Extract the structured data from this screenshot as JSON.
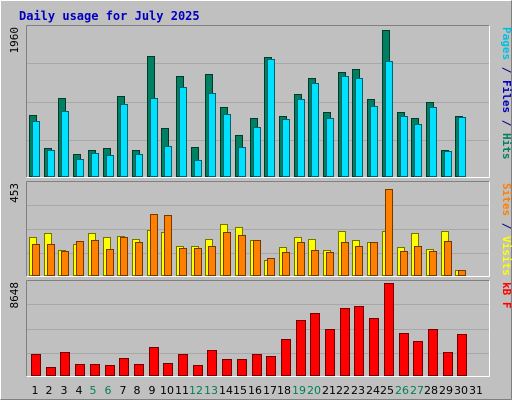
{
  "chart_data": {
    "type": "bar",
    "title": "Daily usage for July 2025",
    "days": [
      "1",
      "2",
      "3",
      "4",
      "5",
      "6",
      "7",
      "8",
      "9",
      "10",
      "11",
      "12",
      "13",
      "14",
      "15",
      "16",
      "17",
      "18",
      "19",
      "20",
      "21",
      "22",
      "23",
      "24",
      "25",
      "26",
      "27",
      "28",
      "29",
      "30",
      "31"
    ],
    "weekend_days": [
      5,
      6,
      12,
      13,
      19,
      20,
      26,
      27
    ],
    "panels": [
      {
        "name": "hits-files-pages",
        "max_label": "1960",
        "ymax": 1960,
        "right_label": [
          {
            "text": "Pages",
            "color": "#00c0e0"
          },
          {
            "text": " / ",
            "color": "#000080"
          },
          {
            "text": "Files",
            "color": "#0000c0"
          },
          {
            "text": " / ",
            "color": "#000080"
          },
          {
            "text": "Hits",
            "color": "#008060"
          }
        ],
        "series": [
          {
            "name": "Hits",
            "color": "#008060",
            "values": [
              810,
              380,
              1040,
              300,
              350,
              380,
              1060,
              360,
              1590,
              640,
              1330,
              400,
              1350,
              920,
              550,
              770,
              1580,
              800,
              1090,
              1300,
              850,
              1380,
              1420,
              1020,
              1930,
              860,
              770,
              980,
              360,
              800,
              0
            ]
          },
          {
            "name": "Pages",
            "color": "#00e0ff",
            "values": [
              740,
              350,
              870,
              240,
              310,
              290,
              960,
              300,
              1040,
              410,
              1190,
              230,
              1100,
              830,
              400,
              660,
              1550,
              760,
              1020,
              1230,
              770,
              1330,
              1300,
              930,
              1520,
              800,
              700,
              920,
              340,
              790,
              0
            ]
          }
        ]
      },
      {
        "name": "sites-visits",
        "max_label": "453",
        "ymax": 453,
        "right_label": [
          {
            "text": "Sites",
            "color": "#ff8000"
          },
          {
            "text": " / ",
            "color": "#000080"
          },
          {
            "text": "Visits",
            "color": "#ffff00"
          }
        ],
        "series": [
          {
            "name": "Visits",
            "color": "#ffff00",
            "values": [
              190,
              210,
              130,
              160,
              210,
              190,
              195,
              180,
              225,
              215,
              150,
              150,
              180,
              255,
              240,
              175,
              80,
              145,
              190,
              180,
              130,
              220,
              175,
              165,
              220,
              145,
              210,
              135,
              220,
              30,
              0
            ]
          },
          {
            "name": "Sites",
            "color": "#ff8000",
            "values": [
              160,
              160,
              125,
              170,
              175,
              135,
              190,
              165,
              305,
              300,
              140,
              140,
              150,
              215,
              200,
              175,
              90,
              120,
              165,
              130,
              120,
              165,
              150,
              165,
              430,
              125,
              150,
              125,
              170,
              30,
              0
            ]
          }
        ]
      },
      {
        "name": "kbytes",
        "max_label": "8648",
        "ymax": 8648,
        "right_label": [
          {
            "text": "kB F",
            "color": "#ff0000"
          }
        ],
        "series": [
          {
            "name": "kB F",
            "color": "#ff0000",
            "values": [
              2000,
              800,
              2200,
              1100,
              1100,
              1000,
              1700,
              1100,
              2700,
              1200,
              2000,
              1000,
              2400,
              1600,
              1600,
              2000,
              1900,
              3400,
              5200,
              5900,
              4400,
              6300,
              6500,
              5400,
              8650,
              4000,
              3300,
              4400,
              2200,
              3900,
              0
            ]
          }
        ]
      }
    ],
    "grid": true
  }
}
